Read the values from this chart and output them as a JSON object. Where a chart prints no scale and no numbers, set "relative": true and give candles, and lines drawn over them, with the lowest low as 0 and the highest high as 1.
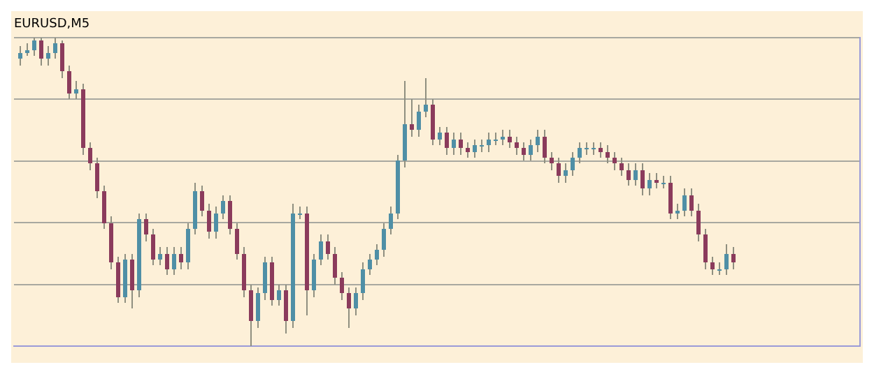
{
  "chart_data": {
    "type": "candlestick",
    "title": "EURUSD,M5",
    "relative": true,
    "grid": "y",
    "categories": [
      null,
      null,
      null,
      null,
      null,
      null,
      null,
      null,
      null,
      null,
      null,
      null,
      null,
      null,
      null,
      null,
      null,
      null,
      null,
      null,
      null,
      null,
      null,
      null,
      null,
      null,
      null,
      null,
      null,
      null,
      null,
      null,
      null,
      null,
      null,
      null,
      null,
      null,
      null,
      null,
      null,
      null,
      null,
      null,
      null,
      null,
      null,
      null,
      null,
      null,
      null,
      null,
      null,
      null,
      null,
      null,
      null,
      null,
      null,
      null,
      null,
      null,
      null,
      null,
      null,
      null,
      null,
      null,
      null,
      null,
      null,
      null,
      null,
      null,
      null,
      null,
      null,
      null,
      null,
      null,
      null,
      null,
      null,
      null,
      null,
      null,
      null,
      null,
      null,
      null,
      null,
      null,
      null,
      null,
      null,
      null,
      null,
      null,
      null,
      null,
      null,
      null,
      null
    ],
    "ohlc": [
      [
        0.93,
        0.97,
        0.91,
        0.95
      ],
      [
        0.95,
        0.98,
        0.94,
        0.96
      ],
      [
        0.96,
        1.0,
        0.94,
        0.99
      ],
      [
        0.99,
        1.0,
        0.91,
        0.93
      ],
      [
        0.93,
        0.97,
        0.91,
        0.95
      ],
      [
        0.95,
        1.0,
        0.93,
        0.98
      ],
      [
        0.98,
        0.99,
        0.87,
        0.89
      ],
      [
        0.89,
        0.91,
        0.8,
        0.82
      ],
      [
        0.82,
        0.86,
        0.8,
        0.83
      ],
      [
        0.83,
        0.85,
        0.62,
        0.64
      ],
      [
        0.64,
        0.66,
        0.57,
        0.59
      ],
      [
        0.59,
        0.61,
        0.48,
        0.5
      ],
      [
        0.5,
        0.52,
        0.38,
        0.4
      ],
      [
        0.4,
        0.42,
        0.25,
        0.27
      ],
      [
        0.27,
        0.29,
        0.14,
        0.16
      ],
      [
        0.16,
        0.3,
        0.14,
        0.28
      ],
      [
        0.28,
        0.3,
        0.12,
        0.18
      ],
      [
        0.18,
        0.43,
        0.16,
        0.41
      ],
      [
        0.41,
        0.43,
        0.34,
        0.36
      ],
      [
        0.36,
        0.38,
        0.26,
        0.28
      ],
      [
        0.28,
        0.32,
        0.26,
        0.3
      ],
      [
        0.3,
        0.32,
        0.23,
        0.25
      ],
      [
        0.25,
        0.32,
        0.23,
        0.3
      ],
      [
        0.3,
        0.32,
        0.25,
        0.27
      ],
      [
        0.27,
        0.4,
        0.25,
        0.38
      ],
      [
        0.38,
        0.53,
        0.36,
        0.5
      ],
      [
        0.5,
        0.52,
        0.42,
        0.44
      ],
      [
        0.44,
        0.46,
        0.35,
        0.37
      ],
      [
        0.37,
        0.45,
        0.35,
        0.43
      ],
      [
        0.43,
        0.49,
        0.41,
        0.47
      ],
      [
        0.47,
        0.49,
        0.36,
        0.38
      ],
      [
        0.38,
        0.4,
        0.28,
        0.3
      ],
      [
        0.3,
        0.32,
        0.16,
        0.18
      ],
      [
        0.18,
        0.2,
        0.0,
        0.08
      ],
      [
        0.08,
        0.19,
        0.06,
        0.17
      ],
      [
        0.17,
        0.29,
        0.15,
        0.27
      ],
      [
        0.27,
        0.29,
        0.13,
        0.15
      ],
      [
        0.15,
        0.2,
        0.13,
        0.18
      ],
      [
        0.18,
        0.2,
        0.04,
        0.08
      ],
      [
        0.08,
        0.46,
        0.06,
        0.43
      ],
      [
        0.43,
        0.45,
        0.41,
        0.43
      ],
      [
        0.43,
        0.45,
        0.1,
        0.18
      ],
      [
        0.18,
        0.3,
        0.16,
        0.28
      ],
      [
        0.28,
        0.36,
        0.26,
        0.34
      ],
      [
        0.34,
        0.36,
        0.28,
        0.3
      ],
      [
        0.3,
        0.32,
        0.2,
        0.22
      ],
      [
        0.22,
        0.24,
        0.15,
        0.17
      ],
      [
        0.17,
        0.19,
        0.06,
        0.12
      ],
      [
        0.12,
        0.19,
        0.1,
        0.17
      ],
      [
        0.17,
        0.27,
        0.15,
        0.25
      ],
      [
        0.25,
        0.3,
        0.23,
        0.28
      ],
      [
        0.28,
        0.33,
        0.26,
        0.31
      ],
      [
        0.31,
        0.4,
        0.29,
        0.38
      ],
      [
        0.38,
        0.45,
        0.36,
        0.43
      ],
      [
        0.43,
        0.62,
        0.41,
        0.6
      ],
      [
        0.6,
        0.86,
        0.58,
        0.72
      ],
      [
        0.72,
        0.8,
        0.68,
        0.7
      ],
      [
        0.7,
        0.78,
        0.68,
        0.76
      ],
      [
        0.76,
        0.87,
        0.74,
        0.78
      ],
      [
        0.78,
        0.8,
        0.65,
        0.67
      ],
      [
        0.67,
        0.71,
        0.65,
        0.69
      ],
      [
        0.69,
        0.71,
        0.62,
        0.64
      ],
      [
        0.64,
        0.69,
        0.62,
        0.67
      ],
      [
        0.67,
        0.69,
        0.62,
        0.64
      ],
      [
        0.64,
        0.66,
        0.61,
        0.63
      ],
      [
        0.63,
        0.67,
        0.61,
        0.65
      ],
      [
        0.65,
        0.67,
        0.63,
        0.65
      ],
      [
        0.65,
        0.69,
        0.63,
        0.67
      ],
      [
        0.67,
        0.69,
        0.65,
        0.67
      ],
      [
        0.67,
        0.7,
        0.65,
        0.68
      ],
      [
        0.68,
        0.7,
        0.64,
        0.66
      ],
      [
        0.66,
        0.68,
        0.62,
        0.64
      ],
      [
        0.64,
        0.66,
        0.6,
        0.62
      ],
      [
        0.62,
        0.67,
        0.6,
        0.65
      ],
      [
        0.65,
        0.7,
        0.63,
        0.68
      ],
      [
        0.68,
        0.7,
        0.59,
        0.61
      ],
      [
        0.61,
        0.63,
        0.57,
        0.59
      ],
      [
        0.59,
        0.61,
        0.53,
        0.55
      ],
      [
        0.55,
        0.59,
        0.53,
        0.57
      ],
      [
        0.57,
        0.63,
        0.55,
        0.61
      ],
      [
        0.61,
        0.66,
        0.59,
        0.64
      ],
      [
        0.64,
        0.66,
        0.62,
        0.64
      ],
      [
        0.64,
        0.66,
        0.62,
        0.64
      ],
      [
        0.64,
        0.66,
        0.61,
        0.63
      ],
      [
        0.63,
        0.65,
        0.59,
        0.61
      ],
      [
        0.61,
        0.63,
        0.57,
        0.59
      ],
      [
        0.59,
        0.61,
        0.55,
        0.57
      ],
      [
        0.57,
        0.59,
        0.52,
        0.54
      ],
      [
        0.54,
        0.59,
        0.52,
        0.57
      ],
      [
        0.57,
        0.59,
        0.49,
        0.51
      ],
      [
        0.51,
        0.56,
        0.49,
        0.54
      ],
      [
        0.54,
        0.56,
        0.51,
        0.53
      ],
      [
        0.53,
        0.55,
        0.51,
        0.53
      ],
      [
        0.53,
        0.55,
        0.41,
        0.43
      ],
      [
        0.43,
        0.46,
        0.41,
        0.44
      ],
      [
        0.44,
        0.51,
        0.42,
        0.49
      ],
      [
        0.49,
        0.51,
        0.42,
        0.44
      ],
      [
        0.44,
        0.46,
        0.34,
        0.36
      ],
      [
        0.36,
        0.38,
        0.25,
        0.27
      ],
      [
        0.27,
        0.29,
        0.23,
        0.25
      ],
      [
        0.25,
        0.27,
        0.23,
        0.25
      ],
      [
        0.25,
        0.33,
        0.23,
        0.3
      ],
      [
        0.3,
        0.32,
        0.25,
        0.27
      ]
    ]
  }
}
